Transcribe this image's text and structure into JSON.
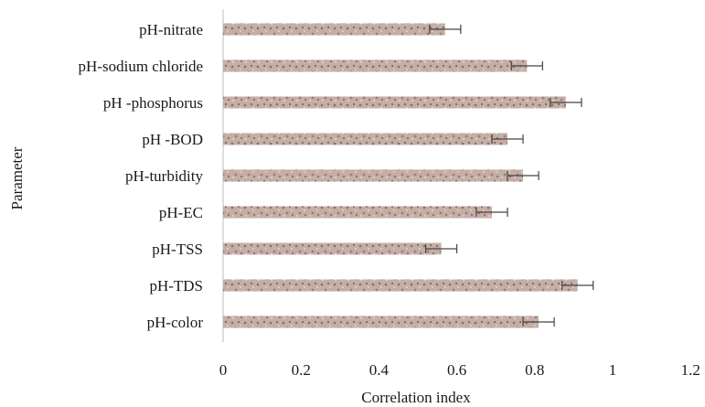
{
  "chart_data": {
    "type": "bar",
    "orientation": "horizontal",
    "title": "",
    "xlabel": "Correlation index",
    "ylabel": "Parameter",
    "xlim": [
      0,
      1.2
    ],
    "xticks": [
      0,
      0.2,
      0.4,
      0.6,
      0.8,
      1,
      1.2
    ],
    "xtick_labels": [
      "0",
      "0.2",
      "0.4",
      "0.6",
      "0.8",
      "1",
      "1.2"
    ],
    "grid": false,
    "legend": "none",
    "categories": [
      "pH-nitrate",
      "pH-sodium chloride",
      "pH -phosphorus",
      "pH -BOD",
      "pH-turbidity",
      "pH-EC",
      "pH-TSS",
      "pH-TDS",
      "pH-color"
    ],
    "values": [
      0.57,
      0.78,
      0.88,
      0.73,
      0.77,
      0.69,
      0.56,
      0.91,
      0.81
    ],
    "errors": [
      0.04,
      0.04,
      0.04,
      0.04,
      0.04,
      0.04,
      0.04,
      0.04,
      0.04
    ],
    "bar_color": "#b9a198",
    "bar_texture_color": "#8a6e64",
    "error_bar_color": "#444444",
    "axis_color": "#bfbfbf"
  }
}
